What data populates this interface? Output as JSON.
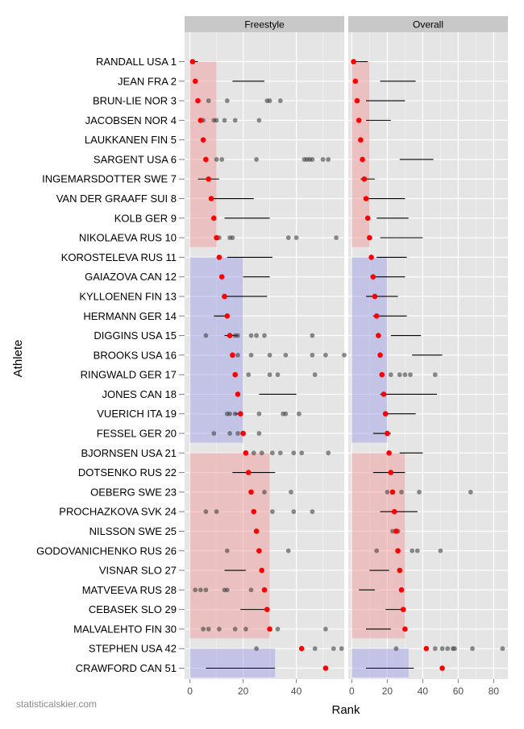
{
  "chart_data": {
    "type": "scatter",
    "xlabel": "Rank",
    "ylabel": "Athlete",
    "watermark": "statisticalskier.com",
    "facets": [
      "Freestyle",
      "Overall"
    ],
    "x_ticks": [
      [
        0,
        20,
        40
      ],
      [
        0,
        20,
        40,
        60,
        80
      ]
    ],
    "x_ranges": [
      [
        -2,
        58
      ],
      [
        -2,
        88
      ]
    ],
    "athletes": [
      "RANDALL USA 1",
      "JEAN FRA 2",
      "BRUN-LIE NOR 3",
      "JACOBSEN NOR 4",
      "LAUKKANEN FIN 5",
      "SARGENT USA 6",
      "INGEMARSDOTTER SWE 7",
      "VAN DER GRAAFF SUI 8",
      "KOLB GER 9",
      "NIKOLAEVA RUS 10",
      "KOROSTELEVA RUS 11",
      "GAIAZOVA CAN 12",
      "KYLLOENEN FIN 13",
      "HERMANN GER 14",
      "DIGGINS USA 15",
      "BROOKS USA 16",
      "RINGWALD GER 17",
      "JONES CAN 18",
      "VUERICH ITA 19",
      "FESSEL GER 20",
      "BJORNSEN USA 21",
      "DOTSENKO RUS 22",
      "OEBERG SWE 23",
      "PROCHAZKOVA SVK 24",
      "NILSSON SWE 25",
      "GODOVANICHENKO RUS 26",
      "VISNAR SLO 27",
      "MATVEEVA RUS 28",
      "CEBASEK SLO 29",
      "MALVALEHTO FIN 30",
      "STEPHEN USA 42",
      "CRAWFORD CAN 51"
    ],
    "bands": [
      {
        "from": 1,
        "to": 10,
        "color": "#f1a3a3"
      },
      {
        "from": 11,
        "to": 20,
        "color": "#a8a8e8"
      },
      {
        "from": 21,
        "to": 30,
        "color": "#f1a3a3"
      },
      {
        "from": 31,
        "to": 32,
        "color": "#a8a8e8"
      }
    ],
    "colors": {
      "current": "#ff0000",
      "past": "#404040",
      "panel_bg": "#e5e5e5",
      "strip_bg": "#c8c8c8",
      "grid": "#ffffff",
      "range_line": "#000000"
    },
    "panels": [
      {
        "name": "Freestyle",
        "current": [
          1,
          2,
          3,
          4,
          5,
          6,
          7,
          8,
          9,
          10,
          11,
          12,
          13,
          14,
          15,
          16,
          17,
          18,
          19,
          20,
          21,
          22,
          23,
          24,
          25,
          26,
          27,
          28,
          29,
          30,
          42,
          51
        ],
        "ranges": [
          [
            0,
            3
          ],
          [
            16,
            28
          ],
          null,
          null,
          null,
          null,
          [
            3,
            11
          ],
          [
            8,
            24
          ],
          [
            13,
            30
          ],
          null,
          [
            14,
            31
          ],
          [
            20,
            30
          ],
          [
            12,
            29
          ],
          [
            9,
            14
          ],
          [
            13,
            18
          ],
          null,
          null,
          [
            26,
            40
          ],
          [
            17,
            20
          ],
          [
            19,
            21
          ],
          [
            20,
            22
          ],
          [
            16,
            32
          ],
          null,
          null,
          null,
          null,
          [
            13,
            21
          ],
          null,
          [
            19,
            29
          ],
          null,
          null,
          [
            6,
            32
          ]
        ],
        "past": [
          [],
          [],
          [
            7,
            14,
            29,
            30,
            34
          ],
          [
            5,
            9,
            10,
            13,
            17,
            26
          ],
          [],
          [
            10,
            12,
            25,
            43,
            44,
            45,
            46,
            50,
            52
          ],
          [],
          [],
          [],
          [
            11,
            15,
            16,
            37,
            40,
            55
          ],
          [],
          [],
          [],
          [],
          [
            6,
            17,
            18,
            23,
            25,
            28,
            46
          ],
          [
            18,
            23,
            30,
            36,
            46,
            51,
            58
          ],
          [
            22,
            30,
            33,
            47
          ],
          [],
          [
            14,
            15,
            17,
            26,
            35,
            36,
            41
          ],
          [
            9,
            15,
            18,
            26
          ],
          [
            21,
            24,
            27,
            31,
            34,
            39,
            42,
            52
          ],
          [],
          [
            28,
            38
          ],
          [
            6,
            10,
            31,
            39,
            46
          ],
          [],
          [
            14,
            37
          ],
          [],
          [
            2,
            4,
            6,
            13,
            14,
            23
          ],
          [],
          [
            5,
            7,
            11,
            17,
            21,
            33,
            51
          ],
          [
            25,
            47,
            54,
            57
          ],
          []
        ]
      },
      {
        "name": "Overall",
        "current": [
          1,
          2,
          3,
          4,
          5,
          6,
          7,
          8,
          9,
          10,
          11,
          12,
          13,
          14,
          15,
          16,
          17,
          18,
          19,
          20,
          21,
          22,
          23,
          24,
          25,
          26,
          27,
          28,
          29,
          30,
          42,
          51
        ],
        "ranges": [
          [
            1,
            9
          ],
          [
            16,
            36
          ],
          [
            8,
            30
          ],
          [
            8,
            22
          ],
          null,
          [
            27,
            46
          ],
          [
            5,
            13
          ],
          [
            9,
            30
          ],
          [
            14,
            32
          ],
          [
            16,
            40
          ],
          [
            14,
            31
          ],
          [
            12,
            30
          ],
          [
            8,
            26
          ],
          [
            12,
            31
          ],
          [
            22,
            39
          ],
          [
            34,
            51
          ],
          null,
          [
            16,
            48
          ],
          [
            18,
            36
          ],
          [
            12,
            22
          ],
          [
            27,
            40
          ],
          [
            12,
            30
          ],
          null,
          [
            16,
            37
          ],
          null,
          null,
          [
            10,
            21
          ],
          [
            4,
            13
          ],
          [
            19,
            30
          ],
          [
            8,
            22
          ],
          null,
          [
            8,
            35
          ]
        ],
        "past": [
          [],
          [],
          [],
          [],
          [],
          [],
          [],
          [],
          [],
          [],
          [],
          [],
          [],
          [],
          [],
          [],
          [
            22,
            27,
            30,
            33,
            47
          ],
          [],
          [],
          [],
          [],
          [],
          [
            20,
            28,
            38,
            67
          ],
          [],
          [
            23,
            26
          ],
          [
            14,
            34,
            37,
            50
          ],
          [],
          [],
          [],
          [],
          [
            25,
            47,
            51,
            54,
            57,
            58,
            68,
            85
          ],
          []
        ]
      }
    ]
  }
}
